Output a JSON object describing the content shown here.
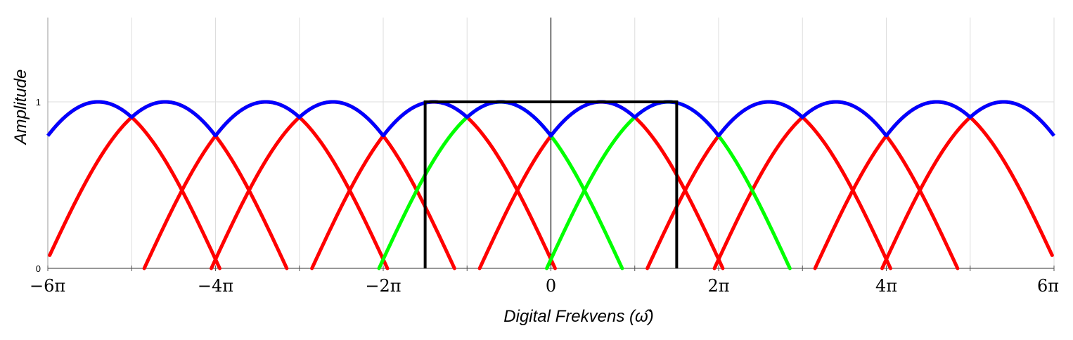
{
  "chart_data": {
    "type": "line",
    "xlabel": "Digital Frekvens (ω̂)",
    "ylabel": "Amplitude",
    "xlim_pi": [
      -6,
      6
    ],
    "ylim": [
      0,
      1.5
    ],
    "grid": true,
    "x_ticks_pi": [
      -6,
      -4,
      -2,
      0,
      2,
      4,
      6
    ],
    "x_tick_labels": [
      "−6π",
      "−4π",
      "−2π",
      "0",
      "2π",
      "4π",
      "6π"
    ],
    "minor_ticks_pi": [
      -5,
      -3,
      -1,
      1,
      3,
      5
    ],
    "y_ticks": [
      0,
      1
    ],
    "y_tick_labels": [
      "0",
      "1"
    ],
    "curve_halfwidth_pi": 1.45,
    "red_centers_pi": [
      -5.4,
      -4.6,
      -3.4,
      -2.6,
      -1.4,
      0.6,
      2.6,
      3.4,
      4.6,
      5.4
    ],
    "green_centers_pi": [
      -0.6,
      1.4
    ],
    "envelope_peaks_pi": [
      -6,
      -5,
      -4,
      -3,
      -2,
      -1,
      0,
      1,
      2,
      3,
      4,
      5,
      6
    ],
    "rect_window": {
      "x_pi": [
        -1.5,
        1.5
      ],
      "height": 1
    },
    "colors": {
      "envelope": "#0000ff",
      "aliases": "#ff0000",
      "baseband": "#00ff00",
      "window": "#000000",
      "grid": "#dddddd",
      "axis": "#000000"
    }
  }
}
